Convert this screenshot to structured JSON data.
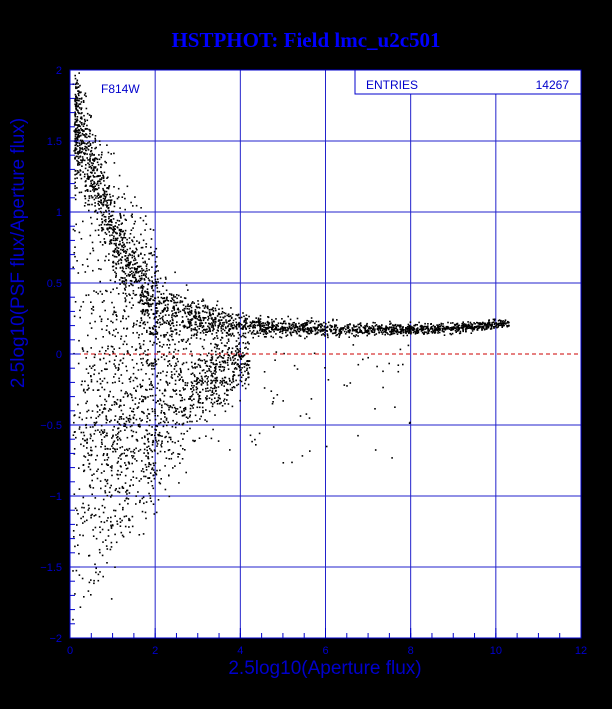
{
  "window": {
    "title": "HSTPHOT: Field lmc_u2c501"
  },
  "colors": {
    "background": "#000000",
    "plot_background": "#ffffff",
    "title": "#0000ff",
    "axes": "#0000cc",
    "grid": "#2222cc",
    "points": "#000000",
    "zero_line": "#cc0000"
  },
  "chart_data": {
    "type": "scatter",
    "title": "HSTPHOT: Field lmc_u2c501",
    "xlabel": "2.5log10(Aperture flux)",
    "ylabel": "2.5log10(PSF flux/Aperture flux)",
    "xlim": [
      0,
      12
    ],
    "ylim": [
      -2,
      2
    ],
    "x_ticks": [
      0,
      2,
      4,
      6,
      8,
      10,
      12
    ],
    "x_tick_labels": [
      "0",
      "2",
      "4",
      "6",
      "8",
      "10",
      "12"
    ],
    "y_ticks": [
      2,
      1.5,
      1,
      0.5,
      0,
      -0.5,
      -1,
      -1.5,
      -2
    ],
    "y_tick_labels": [
      "2",
      "1.5",
      "1",
      "0.5",
      "0",
      "−0.5",
      "−1",
      "−1.5",
      "−2"
    ],
    "grid": true,
    "filter_label": "F814W",
    "stats": {
      "entries_label": "ENTRIES",
      "entries_value": "14267"
    },
    "reference_line": {
      "y": 0,
      "style": "dashed",
      "color": "#cc0000"
    },
    "series": [
      {
        "values_description_count": 14267,
        "envelope": [
          {
            "x": 0.2,
            "y_center": 1.6,
            "y_spread": 0.4
          },
          {
            "x": 0.6,
            "y_center": 1.2,
            "y_spread": 0.3
          },
          {
            "x": 1.0,
            "y_center": 0.85,
            "y_spread": 0.25
          },
          {
            "x": 1.5,
            "y_center": 0.55,
            "y_spread": 0.25
          },
          {
            "x": 2.0,
            "y_center": 0.35,
            "y_spread": 0.3
          },
          {
            "x": 3.0,
            "y_center": 0.25,
            "y_spread": 0.12
          },
          {
            "x": 4.0,
            "y_center": 0.21,
            "y_spread": 0.08
          },
          {
            "x": 5.0,
            "y_center": 0.19,
            "y_spread": 0.06
          },
          {
            "x": 6.0,
            "y_center": 0.18,
            "y_spread": 0.05
          },
          {
            "x": 7.0,
            "y_center": 0.18,
            "y_spread": 0.04
          },
          {
            "x": 8.0,
            "y_center": 0.18,
            "y_spread": 0.04
          },
          {
            "x": 9.0,
            "y_center": 0.19,
            "y_spread": 0.04
          },
          {
            "x": 10.3,
            "y_center": 0.22,
            "y_spread": 0.03
          }
        ],
        "lower_branch": [
          {
            "x": 1.0,
            "y_center": -0.5,
            "y_spread": 0.8
          },
          {
            "x": 2.0,
            "y_center": -0.4,
            "y_spread": 0.6
          },
          {
            "x": 3.0,
            "y_center": -0.2,
            "y_spread": 0.3
          },
          {
            "x": 4.0,
            "y_center": -0.05,
            "y_spread": 0.2
          }
        ]
      }
    ]
  }
}
